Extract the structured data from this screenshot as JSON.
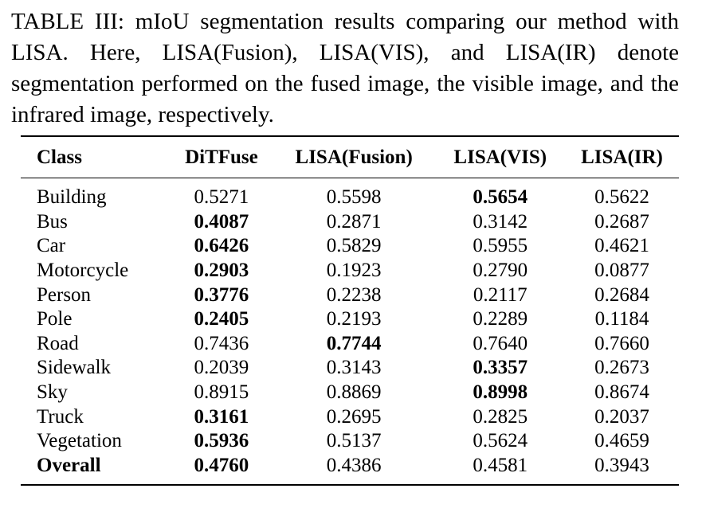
{
  "caption": "TABLE III: mIoU segmentation results comparing our method with LISA. Here, LISA(Fusion), LISA(VIS), and LISA(IR) denote segmentation performed on the fused image, the visible image, and the infrared image, respectively.",
  "table": {
    "headers": [
      "Class",
      "DiTFuse",
      "LISA(Fusion)",
      "LISA(VIS)",
      "LISA(IR)"
    ],
    "rows": [
      {
        "cells": [
          "Building",
          "0.5271",
          "0.5598",
          "0.5654",
          "0.5622"
        ],
        "bold": [
          false,
          false,
          false,
          true,
          false
        ]
      },
      {
        "cells": [
          "Bus",
          "0.4087",
          "0.2871",
          "0.3142",
          "0.2687"
        ],
        "bold": [
          false,
          true,
          false,
          false,
          false
        ]
      },
      {
        "cells": [
          "Car",
          "0.6426",
          "0.5829",
          "0.5955",
          "0.4621"
        ],
        "bold": [
          false,
          true,
          false,
          false,
          false
        ]
      },
      {
        "cells": [
          "Motorcycle",
          "0.2903",
          "0.1923",
          "0.2790",
          "0.0877"
        ],
        "bold": [
          false,
          true,
          false,
          false,
          false
        ]
      },
      {
        "cells": [
          "Person",
          "0.3776",
          "0.2238",
          "0.2117",
          "0.2684"
        ],
        "bold": [
          false,
          true,
          false,
          false,
          false
        ]
      },
      {
        "cells": [
          "Pole",
          "0.2405",
          "0.2193",
          "0.2289",
          "0.1184"
        ],
        "bold": [
          false,
          true,
          false,
          false,
          false
        ]
      },
      {
        "cells": [
          "Road",
          "0.7436",
          "0.7744",
          "0.7640",
          "0.7660"
        ],
        "bold": [
          false,
          false,
          true,
          false,
          false
        ]
      },
      {
        "cells": [
          "Sidewalk",
          "0.2039",
          "0.3143",
          "0.3357",
          "0.2673"
        ],
        "bold": [
          false,
          false,
          false,
          true,
          false
        ]
      },
      {
        "cells": [
          "Sky",
          "0.8915",
          "0.8869",
          "0.8998",
          "0.8674"
        ],
        "bold": [
          false,
          false,
          false,
          true,
          false
        ]
      },
      {
        "cells": [
          "Truck",
          "0.3161",
          "0.2695",
          "0.2825",
          "0.2037"
        ],
        "bold": [
          false,
          true,
          false,
          false,
          false
        ]
      },
      {
        "cells": [
          "Vegetation",
          "0.5936",
          "0.5137",
          "0.5624",
          "0.4659"
        ],
        "bold": [
          false,
          true,
          false,
          false,
          false
        ]
      },
      {
        "cells": [
          "Overall",
          "0.4760",
          "0.4386",
          "0.4581",
          "0.3943"
        ],
        "bold": [
          true,
          true,
          false,
          false,
          false
        ]
      }
    ]
  }
}
